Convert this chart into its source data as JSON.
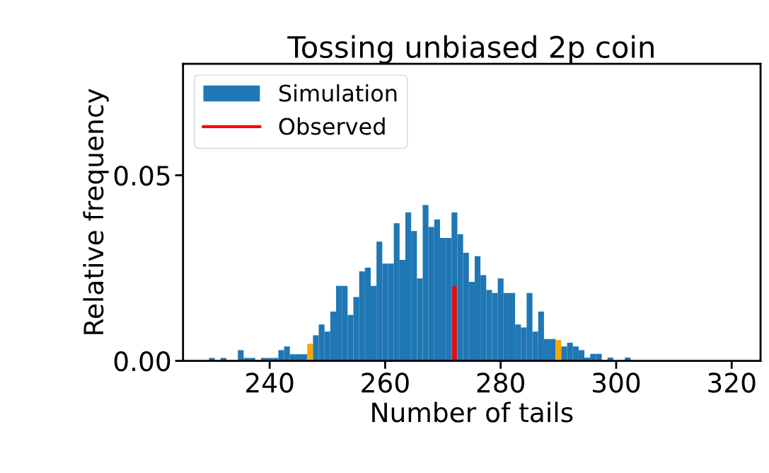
{
  "chart_data": {
    "type": "histogram",
    "title": "Tossing unbiased 2p coin",
    "xlabel": "Number of tails",
    "ylabel": "Relative frequency",
    "bins": [
      229.5,
      230.5,
      231.5,
      232.5,
      233.5,
      234.5,
      235.5,
      236.5,
      237.5,
      238.5,
      239.5,
      240.5,
      241.5,
      242.5,
      243.5,
      244.5,
      245.5,
      246.5,
      247.5,
      248.5,
      249.5,
      250.5,
      251.5,
      252.5,
      253.5,
      254.5,
      255.5,
      256.5,
      257.5,
      258.5,
      259.5,
      260.5,
      261.5,
      262.5,
      263.5,
      264.5,
      265.5,
      266.5,
      267.5,
      268.5,
      269.5,
      270.5,
      271.5,
      272.5,
      273.5,
      274.5,
      275.5,
      276.5,
      277.5,
      278.5,
      279.5,
      280.5,
      281.5,
      282.5,
      283.5,
      284.5,
      285.5,
      286.5,
      287.5,
      288.5,
      289.5,
      290.5,
      291.5,
      292.5,
      293.5,
      294.5,
      295.5,
      296.5,
      297.5,
      298.5,
      299.5,
      300.5,
      301.5,
      302.5
    ],
    "series": [
      {
        "name": "Simulation",
        "color": "#1f77b4",
        "values": [
          0.0008,
          0,
          0.0008,
          0,
          0,
          0.0029,
          0.0008,
          0.0008,
          0,
          0.0008,
          0.0008,
          0.0008,
          0.0029,
          0.0039,
          0.0018,
          0.0018,
          0.0018,
          0.0046,
          0.0069,
          0.0098,
          0.0079,
          0.0133,
          0.0202,
          0.0202,
          0.0124,
          0.0172,
          0.0241,
          0.0251,
          0.0202,
          0.0321,
          0.0262,
          0.0262,
          0.0371,
          0.0272,
          0.04,
          0.035,
          0.0222,
          0.042,
          0.0361,
          0.0381,
          0.0331,
          0.0331,
          0.04,
          0.0341,
          0.0291,
          0.0213,
          0.0282,
          0.0231,
          0.0191,
          0.0183,
          0.0222,
          0.0183,
          0.0183,
          0.0098,
          0.009,
          0.0183,
          0.0079,
          0.0133,
          0.0059,
          0.0059,
          0.0056,
          0.0039,
          0.0049,
          0.0039,
          0.0029,
          0.0009,
          0.0019,
          0.0019,
          0,
          0.0009,
          0,
          0,
          0.0009
        ],
        "colors": [
          "#1f77b4",
          "#1f77b4",
          "#1f77b4",
          "#1f77b4",
          "#1f77b4",
          "#1f77b4",
          "#1f77b4",
          "#1f77b4",
          "#1f77b4",
          "#1f77b4",
          "#1f77b4",
          "#1f77b4",
          "#1f77b4",
          "#1f77b4",
          "#1f77b4",
          "#1f77b4",
          "#1f77b4",
          "#ffa500",
          "#1f77b4",
          "#1f77b4",
          "#1f77b4",
          "#1f77b4",
          "#1f77b4",
          "#1f77b4",
          "#1f77b4",
          "#1f77b4",
          "#1f77b4",
          "#1f77b4",
          "#1f77b4",
          "#1f77b4",
          "#1f77b4",
          "#1f77b4",
          "#1f77b4",
          "#1f77b4",
          "#1f77b4",
          "#1f77b4",
          "#1f77b4",
          "#1f77b4",
          "#1f77b4",
          "#1f77b4",
          "#1f77b4",
          "#1f77b4",
          "#1f77b4",
          "#1f77b4",
          "#1f77b4",
          "#1f77b4",
          "#1f77b4",
          "#1f77b4",
          "#1f77b4",
          "#1f77b4",
          "#1f77b4",
          "#1f77b4",
          "#1f77b4",
          "#1f77b4",
          "#1f77b4",
          "#1f77b4",
          "#1f77b4",
          "#1f77b4",
          "#1f77b4",
          "#1f77b4",
          "#ffa500",
          "#1f77b4",
          "#1f77b4",
          "#1f77b4",
          "#1f77b4",
          "#1f77b4",
          "#1f77b4",
          "#1f77b4",
          "#1f77b4",
          "#1f77b4",
          "#1f77b4",
          "#1f77b4",
          "#1f77b4"
        ]
      },
      {
        "name": "Observed",
        "type": "line",
        "color": "#ff0000",
        "x": [
          272,
          272
        ],
        "values": [
          0,
          0.0201
        ]
      }
    ],
    "xlim": [
      225,
      325
    ],
    "xticks": [
      240,
      260,
      280,
      300,
      320
    ],
    "ylim": [
      0,
      0.08
    ],
    "yticks": [
      {
        "value": 0,
        "label": "0.00"
      },
      {
        "value": 0.05,
        "label": "0.05"
      }
    ],
    "grid": false,
    "legend": "top left"
  }
}
